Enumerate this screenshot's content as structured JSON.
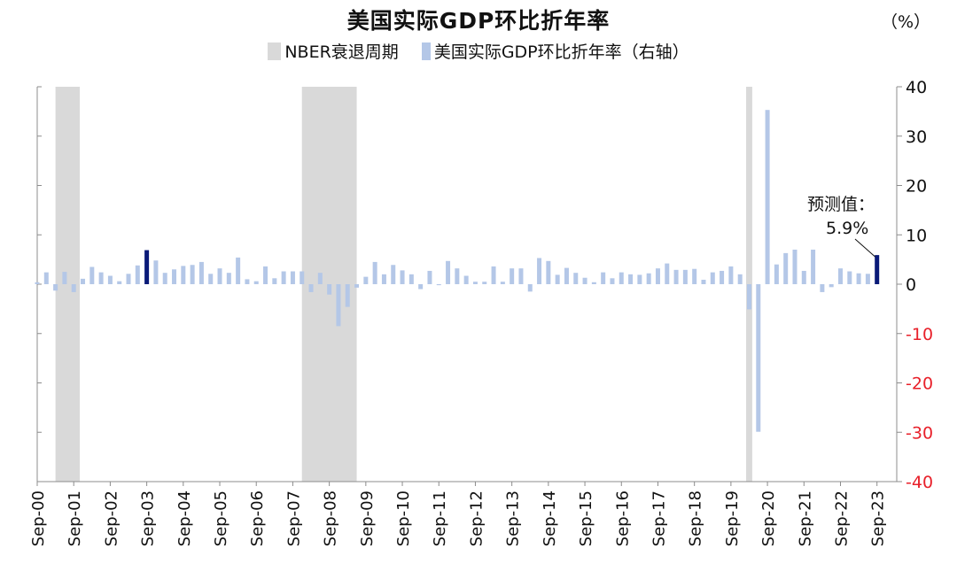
{
  "chart_data": {
    "type": "bar",
    "title": "美国实际GDP环比折年率",
    "unit": "（%）",
    "ylim": [
      -40,
      40
    ],
    "y_ticks": [
      40,
      30,
      20,
      10,
      0,
      -10,
      -20,
      -30,
      -40
    ],
    "y_axis_side": "right",
    "negative_tick_color": "#e8202a",
    "legend": [
      {
        "name": "NBER衰退周期",
        "color": "#d9d9d9"
      },
      {
        "name": "美国实际GDP环比折年率（右轴",
        "color": "#b4c7e7"
      }
    ],
    "legend_close": "）",
    "x_tick_labels": [
      "Sep-00",
      "Sep-01",
      "Sep-02",
      "Sep-03",
      "Sep-04",
      "Sep-05",
      "Sep-06",
      "Sep-07",
      "Sep-08",
      "Sep-09",
      "Sep-10",
      "Sep-11",
      "Sep-12",
      "Sep-13",
      "Sep-14",
      "Sep-15",
      "Sep-16",
      "Sep-17",
      "Sep-18",
      "Sep-19",
      "Sep-20",
      "Sep-21",
      "Sep-22",
      "Sep-23"
    ],
    "recessions": [
      {
        "start": "Mar-01",
        "end": "Nov-01"
      },
      {
        "start": "Dec-07",
        "end": "Jun-09"
      },
      {
        "start": "Feb-20",
        "end": "Apr-20"
      }
    ],
    "series": [
      {
        "name": "美国实际GDP环比折年率（右轴）",
        "color": "#b4c7e7",
        "highlight_color": "#0a1a78",
        "start": "Sep-00",
        "highlight": [
          "Sep-03",
          "Sep-23"
        ],
        "values": [
          0.4,
          2.4,
          -1.3,
          2.5,
          -1.6,
          1.1,
          3.5,
          2.4,
          1.7,
          0.6,
          2.1,
          3.8,
          6.9,
          4.8,
          2.3,
          3.0,
          3.7,
          3.9,
          4.5,
          2.1,
          3.2,
          2.3,
          5.4,
          1.0,
          0.6,
          3.6,
          1.2,
          2.6,
          2.6,
          2.6,
          -1.6,
          2.3,
          -2.1,
          -8.5,
          -4.6,
          -0.7,
          1.5,
          4.5,
          2.0,
          3.9,
          2.8,
          2.0,
          -1.0,
          2.7,
          -0.2,
          4.7,
          3.2,
          1.7,
          0.5,
          0.5,
          3.6,
          0.5,
          3.2,
          3.2,
          -1.5,
          5.3,
          4.7,
          1.9,
          3.3,
          2.3,
          1.3,
          0.4,
          2.4,
          1.2,
          2.4,
          2.0,
          1.9,
          2.2,
          3.2,
          4.2,
          2.9,
          2.9,
          3.1,
          0.9,
          2.4,
          2.7,
          3.6,
          2.0,
          -5.1,
          -29.9,
          35.3,
          4.0,
          6.3,
          7.0,
          2.7,
          7.0,
          -1.6,
          -0.6,
          3.2,
          2.6,
          2.2,
          2.1,
          5.9
        ]
      }
    ],
    "annotation": {
      "label": "预测值：",
      "value": "5.9%"
    }
  }
}
